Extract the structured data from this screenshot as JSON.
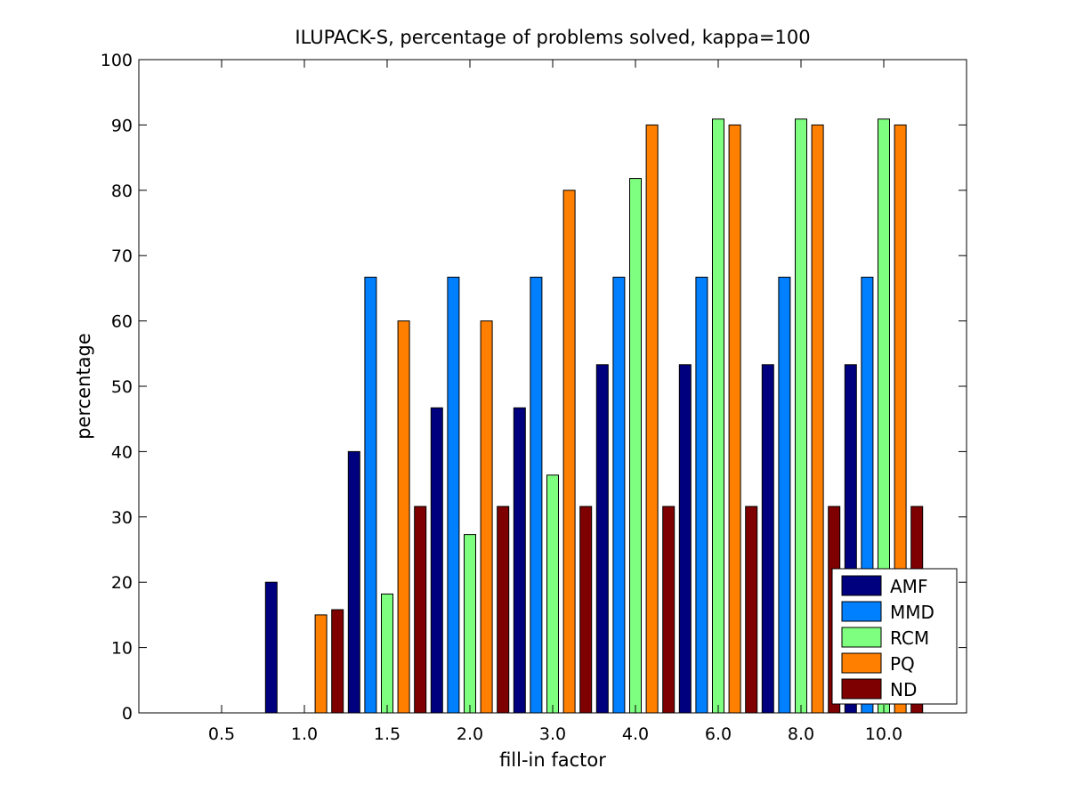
{
  "chart_data": {
    "type": "bar",
    "title": "ILUPACK-S, percentage of problems solved, kappa=100",
    "xlabel": "fill-in factor",
    "ylabel": "percentage",
    "categories": [
      "0.5",
      "1.0",
      "1.5",
      "2.0",
      "3.0",
      "4.0",
      "6.0",
      "8.0",
      "10.0"
    ],
    "ylim": [
      0,
      100
    ],
    "yticks": [
      "0",
      "10",
      "20",
      "30",
      "40",
      "50",
      "60",
      "70",
      "80",
      "90",
      "100"
    ],
    "grid": false,
    "legend_position": "bottom-right",
    "series": [
      {
        "name": "AMF",
        "color": "#00007f",
        "values": [
          0,
          20,
          40,
          46.7,
          46.7,
          53.3,
          53.3,
          53.3,
          53.3
        ]
      },
      {
        "name": "MMD",
        "color": "#007fff",
        "values": [
          0,
          0,
          66.7,
          66.7,
          66.7,
          66.7,
          66.7,
          66.7,
          66.7
        ]
      },
      {
        "name": "RCM",
        "color": "#7fff7f",
        "values": [
          0,
          0,
          18.2,
          27.3,
          36.4,
          81.8,
          90.9,
          90.9,
          90.9
        ]
      },
      {
        "name": "PQ",
        "color": "#ff7f00",
        "values": [
          0,
          15,
          60,
          60,
          80,
          90,
          90,
          90,
          90
        ]
      },
      {
        "name": "ND",
        "color": "#7f0000",
        "values": [
          0,
          15.8,
          31.6,
          31.6,
          31.6,
          31.6,
          31.6,
          31.6,
          31.6
        ]
      }
    ]
  }
}
